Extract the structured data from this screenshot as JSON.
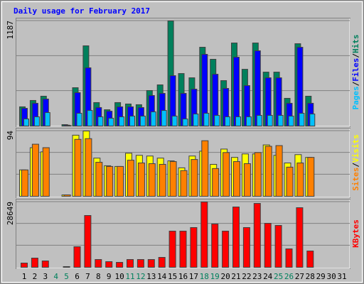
{
  "chart_data": [
    {
      "type": "bar",
      "title": "Daily usage for February 2017",
      "ylim": [
        0,
        1187
      ],
      "yticks": [
        1187
      ],
      "legend_separator": "/",
      "series": [
        {
          "name": "Hits",
          "color": "#00805c",
          "values": [
            217,
            289,
            337,
            0,
            16,
            433,
            906,
            265,
            184,
            265,
            249,
            241,
            401,
            465,
            1187,
            593,
            545,
            890,
            754,
            513,
            938,
            641,
            938,
            609,
            609,
            313,
            930,
            337,
            null,
            null,
            null
          ]
        },
        {
          "name": "Files",
          "color": "#0000ff",
          "values": [
            200,
            257,
            305,
            0,
            10,
            377,
            658,
            209,
            168,
            217,
            217,
            209,
            345,
            369,
            569,
            369,
            417,
            810,
            585,
            425,
            778,
            457,
            850,
            545,
            545,
            257,
            890,
            257,
            null,
            null,
            null
          ]
        },
        {
          "name": "Pages",
          "color": "#00c0ff",
          "values": [
            80,
            104,
            152,
            0,
            5,
            144,
            176,
            104,
            88,
            104,
            112,
            112,
            160,
            176,
            112,
            80,
            136,
            144,
            120,
            104,
            104,
            104,
            120,
            120,
            120,
            112,
            144,
            136,
            null,
            null,
            null
          ]
        }
      ]
    },
    {
      "type": "bar",
      "ylim": [
        0,
        94
      ],
      "yticks": [
        94
      ],
      "legend_separator": "/",
      "series": [
        {
          "name": "Visits",
          "color": "#ffff00",
          "values": [
            38,
            70,
            64,
            0,
            2,
            88,
            94,
            55,
            44,
            43,
            62,
            59,
            58,
            55,
            51,
            41,
            58,
            65,
            46,
            68,
            56,
            61,
            61,
            74,
            59,
            48,
            60,
            56,
            null,
            null,
            null
          ]
        },
        {
          "name": "Sites",
          "color": "#ff8000",
          "values": [
            38,
            75,
            70,
            0,
            2,
            82,
            83,
            49,
            43,
            43,
            52,
            48,
            47,
            46,
            50,
            37,
            53,
            80,
            40,
            63,
            50,
            47,
            63,
            72,
            73,
            42,
            48,
            56,
            null,
            null,
            null
          ]
        }
      ]
    },
    {
      "type": "bar",
      "ylim": [
        0,
        28649
      ],
      "yticks": [
        28649
      ],
      "categories": [
        "1",
        "2",
        "3",
        "4",
        "5",
        "6",
        "7",
        "8",
        "9",
        "10",
        "11",
        "12",
        "13",
        "14",
        "15",
        "16",
        "17",
        "18",
        "19",
        "20",
        "21",
        "22",
        "23",
        "24",
        "25",
        "26",
        "27",
        "28",
        "29",
        "30",
        "31"
      ],
      "category_colors": [
        "#000000",
        "#000000",
        "#000000",
        "#00805c",
        "#00805c",
        "#000000",
        "#000000",
        "#000000",
        "#000000",
        "#000000",
        "#00805c",
        "#00805c",
        "#000000",
        "#000000",
        "#000000",
        "#000000",
        "#000000",
        "#00805c",
        "#00805c",
        "#000000",
        "#000000",
        "#000000",
        "#000000",
        "#000000",
        "#00805c",
        "#00805c",
        "#000000",
        "#000000",
        "#000000",
        "#000000",
        "#000000"
      ],
      "series": [
        {
          "name": "KBytes",
          "color": "#ff0000",
          "values": [
            1868,
            4048,
            2803,
            0,
            311,
            9031,
            22732,
            3425,
            2491,
            2180,
            3425,
            3425,
            3425,
            4360,
            15882,
            15882,
            17438,
            28649,
            19000,
            15882,
            26469,
            17438,
            28026,
            19307,
            18373,
            8096,
            26158,
            7162,
            null,
            null,
            null
          ]
        }
      ]
    }
  ]
}
